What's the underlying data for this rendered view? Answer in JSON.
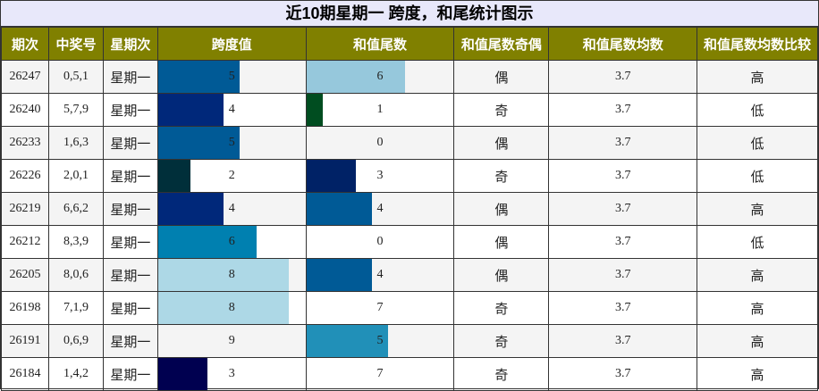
{
  "title": "近10期星期一 跨度，和尾统计图示",
  "headers": [
    "期次",
    "中奖号",
    "星期次",
    "跨度值",
    "和值尾数",
    "和值尾数奇偶",
    "和值尾数均数",
    "和值尾数均数比较"
  ],
  "max_value": 9,
  "rows": [
    {
      "issue": "26247",
      "nums": "0,5,1",
      "weekday": "星期一",
      "span": 5,
      "span_color": "#005a96",
      "tail": 6,
      "tail_color": "#96c8dc",
      "parity": "偶",
      "avg": "3.7",
      "cmp": "高"
    },
    {
      "issue": "26240",
      "nums": "5,7,9",
      "weekday": "星期一",
      "span": 4,
      "span_color": "#00287a",
      "tail": 1,
      "tail_color": "#004d20",
      "parity": "奇",
      "avg": "3.7",
      "cmp": "低"
    },
    {
      "issue": "26233",
      "nums": "1,6,3",
      "weekday": "星期一",
      "span": 5,
      "span_color": "#005a96",
      "tail": 0,
      "tail_color": "",
      "parity": "偶",
      "avg": "3.7",
      "cmp": "低"
    },
    {
      "issue": "26226",
      "nums": "2,0,1",
      "weekday": "星期一",
      "span": 2,
      "span_color": "#002f3a",
      "tail": 3,
      "tail_color": "#002266",
      "parity": "奇",
      "avg": "3.7",
      "cmp": "低"
    },
    {
      "issue": "26219",
      "nums": "6,6,2",
      "weekday": "星期一",
      "span": 4,
      "span_color": "#00287a",
      "tail": 4,
      "tail_color": "#005a96",
      "parity": "偶",
      "avg": "3.7",
      "cmp": "高"
    },
    {
      "issue": "26212",
      "nums": "8,3,9",
      "weekday": "星期一",
      "span": 6,
      "span_color": "#0080b0",
      "tail": 0,
      "tail_color": "",
      "parity": "偶",
      "avg": "3.7",
      "cmp": "低"
    },
    {
      "issue": "26205",
      "nums": "8,0,6",
      "weekday": "星期一",
      "span": 8,
      "span_color": "#add8e6",
      "tail": 4,
      "tail_color": "#005a96",
      "parity": "偶",
      "avg": "3.7",
      "cmp": "高"
    },
    {
      "issue": "26198",
      "nums": "7,1,9",
      "weekday": "星期一",
      "span": 8,
      "span_color": "#add8e6",
      "tail": 7,
      "tail_color": "",
      "parity": "奇",
      "avg": "3.7",
      "cmp": "高"
    },
    {
      "issue": "26191",
      "nums": "0,6,9",
      "weekday": "星期一",
      "span": 9,
      "span_color": "",
      "tail": 5,
      "tail_color": "#2190b8",
      "parity": "奇",
      "avg": "3.7",
      "cmp": "高"
    },
    {
      "issue": "26184",
      "nums": "1,4,2",
      "weekday": "星期一",
      "span": 3,
      "span_color": "#000050",
      "tail": 7,
      "tail_color": "",
      "parity": "奇",
      "avg": "3.7",
      "cmp": "高"
    }
  ]
}
